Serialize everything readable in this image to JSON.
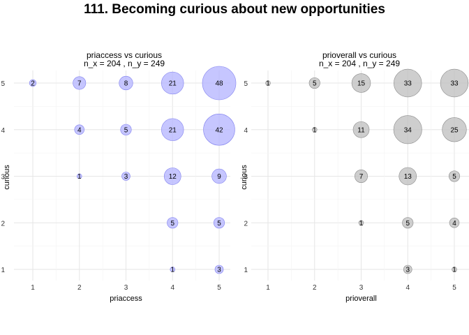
{
  "title": "111. Becoming curious about new opportunities",
  "chart_data": [
    {
      "type": "scatter",
      "title": "priaccess vs curious",
      "subtitle": "n_x = 204 , n_y = 249",
      "xlabel": "priaccess",
      "ylabel": "curious",
      "x_ticks": [
        "1",
        "2",
        "3",
        "4",
        "5"
      ],
      "y_ticks": [
        "1",
        "2",
        "3",
        "4",
        "5"
      ],
      "xlim": [
        1,
        5
      ],
      "ylim": [
        1,
        5
      ],
      "grid": true,
      "color": "#b3b3ff",
      "stroke": "#8080ee",
      "points": [
        {
          "x": 1,
          "y": 5,
          "n": 2
        },
        {
          "x": 2,
          "y": 5,
          "n": 7
        },
        {
          "x": 3,
          "y": 5,
          "n": 8
        },
        {
          "x": 4,
          "y": 5,
          "n": 21
        },
        {
          "x": 5,
          "y": 5,
          "n": 48
        },
        {
          "x": 2,
          "y": 4,
          "n": 4
        },
        {
          "x": 3,
          "y": 4,
          "n": 5
        },
        {
          "x": 4,
          "y": 4,
          "n": 21
        },
        {
          "x": 5,
          "y": 4,
          "n": 42
        },
        {
          "x": 2,
          "y": 3,
          "n": 1
        },
        {
          "x": 3,
          "y": 3,
          "n": 3
        },
        {
          "x": 4,
          "y": 3,
          "n": 12
        },
        {
          "x": 5,
          "y": 3,
          "n": 9
        },
        {
          "x": 4,
          "y": 2,
          "n": 5
        },
        {
          "x": 5,
          "y": 2,
          "n": 5
        },
        {
          "x": 4,
          "y": 1,
          "n": 1
        },
        {
          "x": 5,
          "y": 1,
          "n": 3
        }
      ]
    },
    {
      "type": "scatter",
      "title": "prioverall vs curious",
      "subtitle": "n_x = 204 , n_y = 249",
      "xlabel": "prioverall",
      "ylabel": "curious",
      "x_ticks": [
        "1",
        "2",
        "3",
        "4",
        "5"
      ],
      "y_ticks": [
        "1",
        "2",
        "3",
        "4",
        "5"
      ],
      "xlim": [
        1,
        5
      ],
      "ylim": [
        1,
        5
      ],
      "grid": true,
      "color": "#bdbdbd",
      "stroke": "#8a8a8a",
      "points": [
        {
          "x": 1,
          "y": 5,
          "n": 1
        },
        {
          "x": 2,
          "y": 5,
          "n": 5
        },
        {
          "x": 3,
          "y": 5,
          "n": 15
        },
        {
          "x": 4,
          "y": 5,
          "n": 33
        },
        {
          "x": 5,
          "y": 5,
          "n": 33
        },
        {
          "x": 2,
          "y": 4,
          "n": 1
        },
        {
          "x": 3,
          "y": 4,
          "n": 11
        },
        {
          "x": 4,
          "y": 4,
          "n": 34
        },
        {
          "x": 5,
          "y": 4,
          "n": 25
        },
        {
          "x": 3,
          "y": 3,
          "n": 7
        },
        {
          "x": 4,
          "y": 3,
          "n": 13
        },
        {
          "x": 5,
          "y": 3,
          "n": 5
        },
        {
          "x": 3,
          "y": 2,
          "n": 1
        },
        {
          "x": 4,
          "y": 2,
          "n": 5
        },
        {
          "x": 5,
          "y": 2,
          "n": 4
        },
        {
          "x": 4,
          "y": 1,
          "n": 3
        },
        {
          "x": 5,
          "y": 1,
          "n": 1
        }
      ]
    }
  ]
}
